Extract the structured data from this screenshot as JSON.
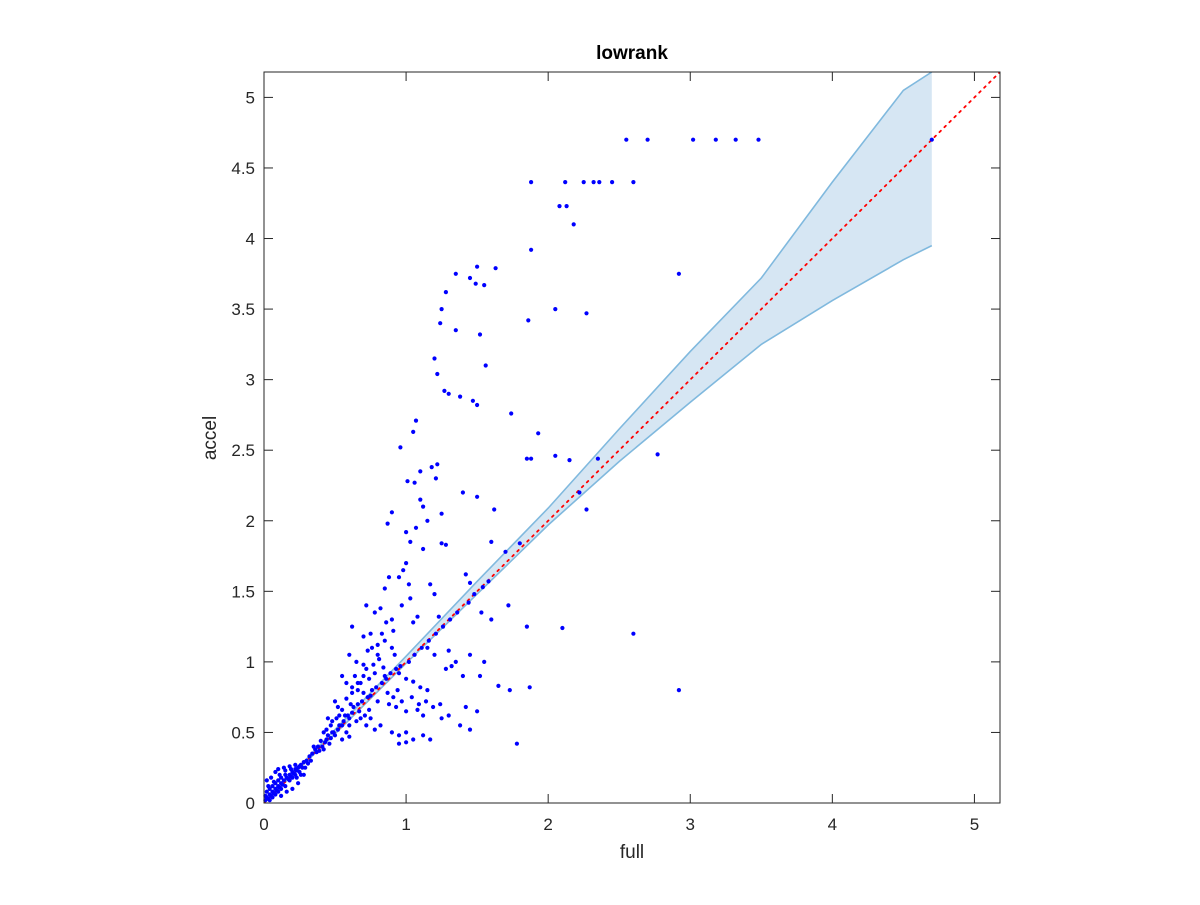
{
  "chart_data": {
    "type": "scatter",
    "title": "lowrank",
    "xlabel": "full",
    "ylabel": "accel",
    "xlim": [
      0,
      5.18
    ],
    "ylim": [
      0,
      5.18
    ],
    "xticks": [
      0,
      1,
      2,
      3,
      4,
      5
    ],
    "xtick_labels": [
      "0",
      "1",
      "2",
      "3",
      "4",
      "5"
    ],
    "yticks": [
      0,
      0.5,
      1,
      1.5,
      2,
      2.5,
      3,
      3.5,
      4,
      4.5,
      5
    ],
    "ytick_labels": [
      "0",
      "0.5",
      "1",
      "1.5",
      "2",
      "2.5",
      "3",
      "3.5",
      "4",
      "4.5",
      "5"
    ],
    "grid": false,
    "colors": {
      "points": "#0000ff",
      "band_fill": "#d6e6f3",
      "band_edge": "#80b9de",
      "reference_line": "#ff0000",
      "axes": "#262626"
    },
    "reference_line": {
      "style": "dotted",
      "x": [
        0,
        5.18
      ],
      "y": [
        0,
        5.18
      ]
    },
    "band": {
      "x": [
        0,
        0.5,
        1,
        1.5,
        2,
        2.5,
        3,
        3.5,
        4,
        4.5,
        4.7
      ],
      "upper": [
        0,
        0.52,
        1.04,
        1.57,
        2.09,
        2.65,
        3.2,
        3.72,
        4.4,
        5.05,
        5.18
      ],
      "lower": [
        0,
        0.49,
        0.99,
        1.48,
        1.97,
        2.42,
        2.84,
        3.25,
        3.56,
        3.85,
        3.95
      ]
    },
    "points": [
      [
        1.88,
        4.4
      ],
      [
        2.12,
        4.4
      ],
      [
        2.25,
        4.4
      ],
      [
        2.32,
        4.4
      ],
      [
        2.36,
        4.4
      ],
      [
        2.45,
        4.4
      ],
      [
        2.6,
        4.4
      ],
      [
        2.55,
        4.7
      ],
      [
        2.7,
        4.7
      ],
      [
        3.02,
        4.7
      ],
      [
        3.18,
        4.7
      ],
      [
        3.32,
        4.7
      ],
      [
        3.48,
        4.7
      ],
      [
        4.7,
        4.7
      ],
      [
        2.08,
        4.23
      ],
      [
        2.13,
        4.23
      ],
      [
        2.18,
        4.1
      ],
      [
        1.88,
        3.92
      ],
      [
        1.35,
        3.75
      ],
      [
        1.5,
        3.8
      ],
      [
        1.63,
        3.79
      ],
      [
        1.45,
        3.72
      ],
      [
        1.49,
        3.68
      ],
      [
        1.55,
        3.67
      ],
      [
        1.28,
        3.62
      ],
      [
        1.25,
        3.5
      ],
      [
        2.05,
        3.5
      ],
      [
        2.27,
        3.47
      ],
      [
        1.86,
        3.42
      ],
      [
        1.24,
        3.4
      ],
      [
        1.35,
        3.35
      ],
      [
        1.52,
        3.32
      ],
      [
        1.2,
        3.15
      ],
      [
        1.56,
        3.1
      ],
      [
        1.22,
        3.04
      ],
      [
        2.92,
        3.75
      ],
      [
        1.27,
        2.92
      ],
      [
        1.3,
        2.9
      ],
      [
        1.38,
        2.88
      ],
      [
        1.47,
        2.85
      ],
      [
        1.5,
        2.82
      ],
      [
        1.74,
        2.76
      ],
      [
        1.07,
        2.71
      ],
      [
        1.05,
        2.63
      ],
      [
        1.93,
        2.62
      ],
      [
        1.18,
        2.38
      ],
      [
        1.22,
        2.4
      ],
      [
        1.1,
        2.35
      ],
      [
        0.96,
        2.52
      ],
      [
        2.77,
        2.47
      ],
      [
        2.05,
        2.46
      ],
      [
        1.85,
        2.44
      ],
      [
        1.88,
        2.44
      ],
      [
        2.15,
        2.43
      ],
      [
        2.35,
        2.44
      ],
      [
        1.01,
        2.28
      ],
      [
        1.06,
        2.27
      ],
      [
        1.21,
        2.3
      ],
      [
        1.4,
        2.2
      ],
      [
        1.5,
        2.17
      ],
      [
        1.1,
        2.15
      ],
      [
        1.12,
        2.1
      ],
      [
        2.22,
        2.2
      ],
      [
        2.27,
        2.08
      ],
      [
        1.62,
        2.08
      ],
      [
        1.25,
        2.05
      ],
      [
        0.9,
        2.06
      ],
      [
        1.15,
        2.0
      ],
      [
        0.87,
        1.98
      ],
      [
        1.0,
        1.92
      ],
      [
        1.07,
        1.95
      ],
      [
        1.03,
        1.85
      ],
      [
        1.25,
        1.84
      ],
      [
        1.28,
        1.83
      ],
      [
        1.12,
        1.8
      ],
      [
        1.6,
        1.85
      ],
      [
        1.8,
        1.84
      ],
      [
        1.7,
        1.78
      ],
      [
        1.0,
        1.7
      ],
      [
        0.98,
        1.65
      ],
      [
        0.95,
        1.6
      ],
      [
        1.02,
        1.55
      ],
      [
        1.42,
        1.62
      ],
      [
        1.45,
        1.56
      ],
      [
        0.88,
        1.6
      ],
      [
        0.85,
        1.52
      ],
      [
        1.17,
        1.55
      ],
      [
        1.2,
        1.48
      ],
      [
        0.82,
        1.38
      ],
      [
        0.78,
        1.35
      ],
      [
        0.72,
        1.4
      ],
      [
        0.9,
        1.3
      ],
      [
        1.05,
        1.28
      ],
      [
        1.08,
        1.32
      ],
      [
        1.23,
        1.32
      ],
      [
        1.53,
        1.35
      ],
      [
        1.6,
        1.3
      ],
      [
        1.72,
        1.4
      ],
      [
        1.85,
        1.25
      ],
      [
        2.1,
        1.24
      ],
      [
        2.6,
        1.2
      ],
      [
        0.62,
        1.25
      ],
      [
        0.7,
        1.18
      ],
      [
        0.75,
        1.2
      ],
      [
        0.8,
        1.12
      ],
      [
        0.85,
        1.15
      ],
      [
        0.9,
        1.1
      ],
      [
        0.92,
        1.05
      ],
      [
        1.15,
        1.1
      ],
      [
        1.2,
        1.05
      ],
      [
        1.3,
        1.08
      ],
      [
        1.35,
        1.0
      ],
      [
        1.45,
        1.05
      ],
      [
        1.55,
        1.0
      ],
      [
        0.6,
        1.05
      ],
      [
        0.65,
        1.0
      ],
      [
        0.7,
        0.98
      ],
      [
        0.72,
        0.95
      ],
      [
        0.78,
        0.92
      ],
      [
        0.85,
        0.9
      ],
      [
        0.95,
        0.92
      ],
      [
        1.0,
        0.88
      ],
      [
        1.05,
        0.86
      ],
      [
        1.1,
        0.82
      ],
      [
        1.15,
        0.8
      ],
      [
        1.28,
        0.95
      ],
      [
        1.32,
        0.97
      ],
      [
        1.4,
        0.9
      ],
      [
        1.52,
        0.9
      ],
      [
        1.65,
        0.83
      ],
      [
        1.73,
        0.8
      ],
      [
        1.87,
        0.82
      ],
      [
        2.92,
        0.8
      ],
      [
        0.55,
        0.9
      ],
      [
        0.58,
        0.85
      ],
      [
        0.62,
        0.82
      ],
      [
        0.66,
        0.8
      ],
      [
        0.7,
        0.78
      ],
      [
        0.75,
        0.76
      ],
      [
        0.8,
        0.72
      ],
      [
        0.88,
        0.7
      ],
      [
        0.93,
        0.68
      ],
      [
        1.0,
        0.65
      ],
      [
        1.08,
        0.66
      ],
      [
        1.12,
        0.62
      ],
      [
        1.25,
        0.6
      ],
      [
        1.3,
        0.62
      ],
      [
        1.42,
        0.68
      ],
      [
        1.5,
        0.65
      ],
      [
        1.38,
        0.55
      ],
      [
        1.45,
        0.52
      ],
      [
        0.5,
        0.72
      ],
      [
        0.52,
        0.68
      ],
      [
        0.55,
        0.66
      ],
      [
        0.57,
        0.62
      ],
      [
        0.6,
        0.6
      ],
      [
        0.62,
        0.64
      ],
      [
        0.65,
        0.58
      ],
      [
        0.68,
        0.6
      ],
      [
        0.72,
        0.55
      ],
      [
        0.75,
        0.6
      ],
      [
        0.78,
        0.52
      ],
      [
        0.82,
        0.55
      ],
      [
        0.9,
        0.5
      ],
      [
        0.95,
        0.48
      ],
      [
        1.0,
        0.5
      ],
      [
        1.05,
        0.45
      ],
      [
        1.12,
        0.48
      ],
      [
        1.17,
        0.45
      ],
      [
        1.0,
        0.43
      ],
      [
        0.95,
        0.42
      ],
      [
        1.78,
        0.42
      ],
      [
        0.45,
        0.6
      ],
      [
        0.47,
        0.55
      ],
      [
        0.48,
        0.5
      ],
      [
        0.5,
        0.48
      ],
      [
        0.52,
        0.52
      ],
      [
        0.55,
        0.45
      ],
      [
        0.58,
        0.5
      ],
      [
        0.6,
        0.47
      ],
      [
        0.42,
        0.5
      ],
      [
        0.44,
        0.45
      ],
      [
        0.46,
        0.42
      ],
      [
        0.4,
        0.44
      ],
      [
        0.38,
        0.4
      ],
      [
        0.36,
        0.38
      ],
      [
        0.34,
        0.35
      ],
      [
        0.32,
        0.33
      ],
      [
        0.35,
        0.4
      ],
      [
        0.42,
        0.38
      ],
      [
        0.3,
        0.3
      ],
      [
        0.28,
        0.29
      ],
      [
        0.26,
        0.27
      ],
      [
        0.24,
        0.25
      ],
      [
        0.22,
        0.24
      ],
      [
        0.2,
        0.22
      ],
      [
        0.18,
        0.2
      ],
      [
        0.16,
        0.18
      ],
      [
        0.14,
        0.16
      ],
      [
        0.12,
        0.14
      ],
      [
        0.1,
        0.12
      ],
      [
        0.08,
        0.1
      ],
      [
        0.06,
        0.08
      ],
      [
        0.04,
        0.06
      ],
      [
        0.02,
        0.04
      ],
      [
        0.01,
        0.02
      ],
      [
        0.2,
        0.18
      ],
      [
        0.18,
        0.16
      ],
      [
        0.15,
        0.12
      ],
      [
        0.12,
        0.1
      ],
      [
        0.1,
        0.08
      ],
      [
        0.08,
        0.06
      ],
      [
        0.06,
        0.04
      ],
      [
        0.04,
        0.02
      ],
      [
        0.22,
        0.2
      ],
      [
        0.25,
        0.22
      ],
      [
        0.27,
        0.25
      ],
      [
        0.15,
        0.2
      ],
      [
        0.12,
        0.18
      ],
      [
        0.1,
        0.16
      ],
      [
        0.08,
        0.14
      ],
      [
        0.06,
        0.12
      ],
      [
        0.04,
        0.1
      ],
      [
        0.02,
        0.08
      ],
      [
        0.02,
        0.16
      ],
      [
        0.05,
        0.18
      ],
      [
        0.08,
        0.22
      ],
      [
        0.1,
        0.24
      ],
      [
        0.14,
        0.25
      ],
      [
        0.18,
        0.26
      ],
      [
        0.22,
        0.27
      ],
      [
        0.25,
        0.26
      ],
      [
        0.12,
        0.05
      ],
      [
        0.16,
        0.08
      ],
      [
        0.2,
        0.1
      ],
      [
        0.24,
        0.14
      ],
      [
        0.28,
        0.2
      ],
      [
        0.03,
        0.03
      ],
      [
        0.05,
        0.05
      ],
      [
        0.07,
        0.07
      ],
      [
        0.09,
        0.09
      ],
      [
        0.11,
        0.11
      ],
      [
        0.13,
        0.13
      ],
      [
        0.17,
        0.17
      ],
      [
        0.19,
        0.19
      ],
      [
        0.21,
        0.21
      ],
      [
        0.23,
        0.23
      ],
      [
        0.01,
        0.05
      ],
      [
        0.03,
        0.12
      ],
      [
        0.07,
        0.15
      ],
      [
        0.11,
        0.2
      ],
      [
        0.15,
        0.23
      ],
      [
        0.19,
        0.24
      ],
      [
        0.23,
        0.18
      ],
      [
        0.26,
        0.2
      ],
      [
        0.29,
        0.25
      ],
      [
        0.31,
        0.28
      ],
      [
        0.33,
        0.3
      ],
      [
        0.37,
        0.36
      ],
      [
        0.39,
        0.37
      ],
      [
        0.41,
        0.4
      ],
      [
        0.43,
        0.43
      ],
      [
        0.47,
        0.46
      ],
      [
        0.49,
        0.5
      ],
      [
        0.53,
        0.55
      ],
      [
        0.56,
        0.58
      ],
      [
        0.59,
        0.62
      ],
      [
        0.63,
        0.68
      ],
      [
        0.66,
        0.7
      ],
      [
        0.69,
        0.72
      ],
      [
        0.73,
        0.75
      ],
      [
        0.76,
        0.8
      ],
      [
        0.79,
        0.82
      ],
      [
        0.83,
        0.85
      ],
      [
        0.86,
        0.88
      ],
      [
        0.89,
        0.92
      ],
      [
        0.93,
        0.95
      ],
      [
        0.96,
        0.97
      ],
      [
        1.02,
        1.0
      ],
      [
        1.06,
        1.05
      ],
      [
        1.11,
        1.1
      ],
      [
        1.16,
        1.15
      ],
      [
        1.21,
        1.2
      ],
      [
        1.26,
        1.25
      ],
      [
        1.31,
        1.3
      ],
      [
        1.36,
        1.35
      ],
      [
        1.44,
        1.42
      ],
      [
        1.48,
        1.48
      ],
      [
        1.54,
        1.53
      ],
      [
        1.58,
        1.57
      ],
      [
        0.64,
        0.9
      ],
      [
        0.68,
        0.85
      ],
      [
        0.74,
        0.88
      ],
      [
        0.77,
        0.98
      ],
      [
        0.81,
        1.02
      ],
      [
        0.84,
        0.96
      ],
      [
        0.87,
        0.78
      ],
      [
        0.91,
        0.75
      ],
      [
        0.94,
        0.8
      ],
      [
        0.97,
        0.72
      ],
      [
        1.04,
        0.75
      ],
      [
        1.09,
        0.7
      ],
      [
        1.14,
        0.72
      ],
      [
        1.19,
        0.68
      ],
      [
        1.24,
        0.7
      ],
      [
        0.61,
        0.7
      ],
      [
        0.67,
        0.65
      ],
      [
        0.71,
        0.62
      ],
      [
        0.74,
        0.66
      ],
      [
        0.58,
        0.74
      ],
      [
        0.62,
        0.78
      ],
      [
        0.66,
        0.85
      ],
      [
        0.7,
        0.9
      ],
      [
        0.73,
        1.08
      ],
      [
        0.76,
        1.1
      ],
      [
        0.8,
        1.05
      ],
      [
        0.83,
        1.2
      ],
      [
        0.86,
        1.28
      ],
      [
        0.91,
        1.22
      ],
      [
        0.97,
        1.4
      ],
      [
        1.03,
        1.45
      ],
      [
        0.55,
        0.55
      ],
      [
        0.6,
        0.55
      ],
      [
        0.51,
        0.6
      ],
      [
        0.53,
        0.62
      ],
      [
        0.48,
        0.58
      ],
      [
        0.45,
        0.48
      ],
      [
        0.44,
        0.52
      ]
    ]
  }
}
